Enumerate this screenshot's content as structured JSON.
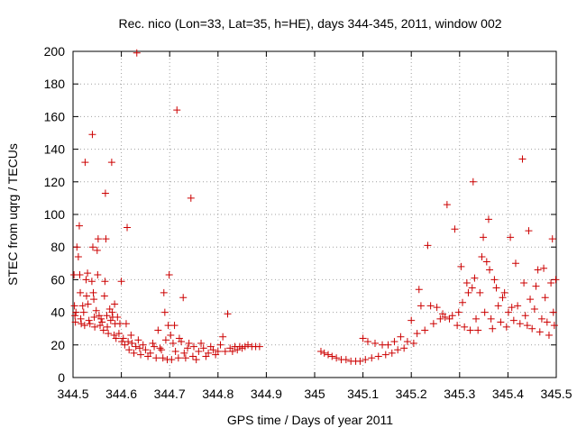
{
  "chart_data": {
    "type": "scatter",
    "title": "Rec. nico (Lon=33, Lat=35, h=HE), days 344-345, 2011, window 002",
    "xlabel": "GPS time / Days of year 2011",
    "ylabel": "STEC from uqrg / TECUs",
    "xlim": [
      344.5,
      345.5
    ],
    "ylim": [
      0,
      200
    ],
    "xticks": [
      344.5,
      344.6,
      344.7,
      344.8,
      344.9,
      345,
      345.1,
      345.2,
      345.3,
      345.4,
      345.5
    ],
    "xtick_labels": [
      "344.5",
      "344.6",
      "344.7",
      "344.8",
      "344.9",
      "345",
      "345.1",
      "345.2",
      "345.3",
      "345.4",
      "345.5"
    ],
    "yticks": [
      0,
      20,
      40,
      60,
      80,
      100,
      120,
      140,
      160,
      180,
      200
    ],
    "ytick_labels": [
      "0",
      "20",
      "40",
      "60",
      "80",
      "100",
      "120",
      "140",
      "160",
      "180",
      "200"
    ],
    "grid": true,
    "marker": "plus",
    "color": "#cc0000",
    "points": [
      [
        344.502,
        63
      ],
      [
        344.503,
        44
      ],
      [
        344.504,
        38
      ],
      [
        344.505,
        34
      ],
      [
        344.506,
        40
      ],
      [
        344.508,
        80
      ],
      [
        344.511,
        74
      ],
      [
        344.513,
        93
      ],
      [
        344.514,
        63
      ],
      [
        344.515,
        52
      ],
      [
        344.516,
        36
      ],
      [
        344.517,
        33
      ],
      [
        344.52,
        44
      ],
      [
        344.522,
        40
      ],
      [
        344.524,
        32
      ],
      [
        344.525,
        132
      ],
      [
        344.527,
        60
      ],
      [
        344.528,
        50
      ],
      [
        344.53,
        64
      ],
      [
        344.531,
        45
      ],
      [
        344.533,
        35
      ],
      [
        344.535,
        33
      ],
      [
        344.539,
        59
      ],
      [
        344.54,
        149
      ],
      [
        344.541,
        80
      ],
      [
        344.542,
        52
      ],
      [
        344.543,
        48
      ],
      [
        344.544,
        37
      ],
      [
        344.545,
        31
      ],
      [
        344.548,
        41
      ],
      [
        344.55,
        78
      ],
      [
        344.551,
        63
      ],
      [
        344.552,
        85
      ],
      [
        344.554,
        38
      ],
      [
        344.556,
        32
      ],
      [
        344.558,
        36
      ],
      [
        344.56,
        34
      ],
      [
        344.563,
        29
      ],
      [
        344.565,
        50
      ],
      [
        344.566,
        59
      ],
      [
        344.567,
        113
      ],
      [
        344.568,
        85
      ],
      [
        344.57,
        38
      ],
      [
        344.571,
        31
      ],
      [
        344.573,
        27
      ],
      [
        344.576,
        42
      ],
      [
        344.578,
        35
      ],
      [
        344.58,
        132
      ],
      [
        344.581,
        40
      ],
      [
        344.582,
        37
      ],
      [
        344.585,
        26
      ],
      [
        344.586,
        45
      ],
      [
        344.587,
        33
      ],
      [
        344.589,
        24
      ],
      [
        344.592,
        37
      ],
      [
        344.595,
        27
      ],
      [
        344.597,
        33
      ],
      [
        344.6,
        59
      ],
      [
        344.601,
        22
      ],
      [
        344.604,
        24
      ],
      [
        344.607,
        20
      ],
      [
        344.61,
        33
      ],
      [
        344.612,
        92
      ],
      [
        344.614,
        22
      ],
      [
        344.616,
        17
      ],
      [
        344.62,
        26
      ],
      [
        344.622,
        21
      ],
      [
        344.626,
        15
      ],
      [
        344.63,
        19
      ],
      [
        344.632,
        199
      ],
      [
        344.635,
        23
      ],
      [
        344.638,
        18
      ],
      [
        344.64,
        14
      ],
      [
        344.645,
        20
      ],
      [
        344.65,
        17
      ],
      [
        344.655,
        13
      ],
      [
        344.66,
        15
      ],
      [
        344.665,
        21
      ],
      [
        344.668,
        19
      ],
      [
        344.672,
        12
      ],
      [
        344.676,
        29
      ],
      [
        344.68,
        18
      ],
      [
        344.683,
        17
      ],
      [
        344.686,
        12
      ],
      [
        344.688,
        52
      ],
      [
        344.69,
        40
      ],
      [
        344.692,
        23
      ],
      [
        344.695,
        11
      ],
      [
        344.697,
        32
      ],
      [
        344.699,
        63
      ],
      [
        344.702,
        26
      ],
      [
        344.704,
        11
      ],
      [
        344.707,
        21
      ],
      [
        344.71,
        32
      ],
      [
        344.712,
        16
      ],
      [
        344.715,
        164
      ],
      [
        344.718,
        12
      ],
      [
        344.72,
        24
      ],
      [
        344.724,
        22
      ],
      [
        344.728,
        49
      ],
      [
        344.73,
        15
      ],
      [
        344.733,
        12
      ],
      [
        344.737,
        18
      ],
      [
        344.74,
        21
      ],
      [
        344.744,
        110
      ],
      [
        344.748,
        13
      ],
      [
        344.75,
        19
      ],
      [
        344.755,
        11
      ],
      [
        344.76,
        16
      ],
      [
        344.765,
        21
      ],
      [
        344.77,
        18
      ],
      [
        344.775,
        13
      ],
      [
        344.78,
        15
      ],
      [
        344.785,
        19
      ],
      [
        344.79,
        17
      ],
      [
        344.795,
        14
      ],
      [
        344.8,
        16
      ],
      [
        344.805,
        20
      ],
      [
        344.81,
        25
      ],
      [
        344.815,
        16
      ],
      [
        344.82,
        39
      ],
      [
        344.825,
        18
      ],
      [
        344.83,
        16
      ],
      [
        344.835,
        19
      ],
      [
        344.84,
        17
      ],
      [
        344.845,
        19
      ],
      [
        344.85,
        18
      ],
      [
        344.856,
        19
      ],
      [
        344.862,
        20
      ],
      [
        344.87,
        19
      ],
      [
        344.878,
        19
      ],
      [
        344.886,
        19
      ],
      [
        345.013,
        16
      ],
      [
        345.02,
        15
      ],
      [
        345.028,
        14
      ],
      [
        345.036,
        13
      ],
      [
        345.045,
        12
      ],
      [
        345.055,
        11
      ],
      [
        345.065,
        11
      ],
      [
        345.075,
        10
      ],
      [
        345.085,
        10
      ],
      [
        345.094,
        10
      ],
      [
        345.1,
        24
      ],
      [
        345.105,
        11
      ],
      [
        345.11,
        22
      ],
      [
        345.118,
        12
      ],
      [
        345.125,
        21
      ],
      [
        345.132,
        13
      ],
      [
        345.14,
        20
      ],
      [
        345.147,
        14
      ],
      [
        345.152,
        20
      ],
      [
        345.16,
        15
      ],
      [
        345.165,
        22
      ],
      [
        345.172,
        17
      ],
      [
        345.178,
        25
      ],
      [
        345.185,
        18
      ],
      [
        345.192,
        22
      ],
      [
        345.2,
        35
      ],
      [
        345.205,
        21
      ],
      [
        345.212,
        27
      ],
      [
        345.216,
        54
      ],
      [
        345.22,
        44
      ],
      [
        345.228,
        29
      ],
      [
        345.234,
        81
      ],
      [
        345.24,
        44
      ],
      [
        345.246,
        33
      ],
      [
        345.253,
        43
      ],
      [
        345.26,
        36
      ],
      [
        345.265,
        39
      ],
      [
        345.27,
        37
      ],
      [
        345.274,
        106
      ],
      [
        345.279,
        36
      ],
      [
        345.285,
        38
      ],
      [
        345.29,
        91
      ],
      [
        345.295,
        32
      ],
      [
        345.298,
        40
      ],
      [
        345.303,
        68
      ],
      [
        345.306,
        46
      ],
      [
        345.31,
        31
      ],
      [
        345.315,
        58
      ],
      [
        345.318,
        52
      ],
      [
        345.322,
        29
      ],
      [
        345.326,
        55
      ],
      [
        345.328,
        120
      ],
      [
        345.331,
        61
      ],
      [
        345.334,
        36
      ],
      [
        345.338,
        29
      ],
      [
        345.342,
        52
      ],
      [
        345.346,
        74
      ],
      [
        345.349,
        86
      ],
      [
        345.352,
        40
      ],
      [
        345.356,
        71
      ],
      [
        345.36,
        97
      ],
      [
        345.362,
        66
      ],
      [
        345.365,
        36
      ],
      [
        345.368,
        30
      ],
      [
        345.372,
        60
      ],
      [
        345.376,
        55
      ],
      [
        345.38,
        44
      ],
      [
        345.385,
        34
      ],
      [
        345.389,
        49
      ],
      [
        345.393,
        52
      ],
      [
        345.397,
        31
      ],
      [
        345.401,
        40
      ],
      [
        345.405,
        86
      ],
      [
        345.408,
        43
      ],
      [
        345.412,
        35
      ],
      [
        345.416,
        70
      ],
      [
        345.42,
        44
      ],
      [
        345.425,
        33
      ],
      [
        345.43,
        134
      ],
      [
        345.433,
        58
      ],
      [
        345.436,
        38
      ],
      [
        345.44,
        32
      ],
      [
        345.443,
        90
      ],
      [
        345.446,
        48
      ],
      [
        345.45,
        30
      ],
      [
        345.455,
        42
      ],
      [
        345.458,
        56
      ],
      [
        345.462,
        66
      ],
      [
        345.466,
        28
      ],
      [
        345.47,
        36
      ],
      [
        345.474,
        67
      ],
      [
        345.477,
        49
      ],
      [
        345.481,
        34
      ],
      [
        345.485,
        26
      ],
      [
        345.489,
        58
      ],
      [
        345.492,
        85
      ],
      [
        345.494,
        40
      ],
      [
        345.496,
        32
      ],
      [
        345.499,
        60
      ]
    ]
  }
}
